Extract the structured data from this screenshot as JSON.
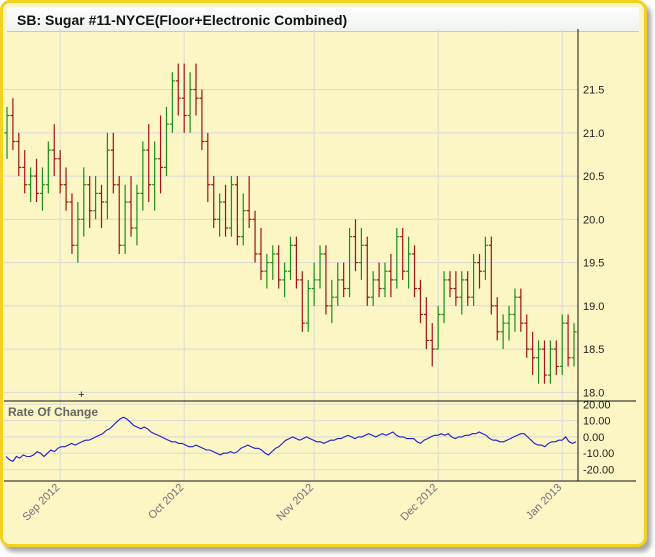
{
  "title": "SB: Sugar #11-NYCE(Floor+Electronic Combined)",
  "colors": {
    "up": "#1a8f1a",
    "down": "#a01414",
    "roc_line": "#1f1fd0",
    "grid": "#dadada",
    "frame": "#f2d21c",
    "background": "#fbf6c4"
  },
  "chart_data": [
    {
      "type": "ohlc",
      "title": "SB: Sugar #11-NYCE(Floor+Electronic Combined)",
      "y_ticks": [
        "18.0",
        "18.5",
        "19.0",
        "19.5",
        "20.0",
        "20.5",
        "21.0",
        "21.5"
      ],
      "ylim": [
        17.9,
        22.2
      ],
      "x_ticks": [
        "Sep 2012",
        "Oct 2012",
        "Nov 2012",
        "Dec 2012",
        "Jan 2013"
      ],
      "x_tick_bars": [
        9,
        30,
        52,
        73,
        94
      ],
      "grid": true,
      "bars": [
        [
          21.0,
          21.3,
          20.7,
          21.2
        ],
        [
          21.2,
          21.4,
          20.8,
          20.9
        ],
        [
          20.9,
          21.0,
          20.5,
          20.6
        ],
        [
          20.6,
          20.8,
          20.3,
          20.4
        ],
        [
          20.4,
          20.6,
          20.2,
          20.5
        ],
        [
          20.5,
          20.7,
          20.2,
          20.3
        ],
        [
          20.3,
          20.6,
          20.1,
          20.4
        ],
        [
          20.4,
          20.9,
          20.3,
          20.8
        ],
        [
          20.8,
          21.1,
          20.5,
          20.7
        ],
        [
          20.7,
          20.8,
          20.3,
          20.4
        ],
        [
          20.4,
          20.6,
          20.1,
          20.2
        ],
        [
          20.2,
          20.3,
          19.6,
          19.7
        ],
        [
          19.7,
          20.2,
          19.5,
          20.0
        ],
        [
          20.0,
          20.6,
          19.8,
          20.4
        ],
        [
          20.4,
          20.5,
          19.9,
          20.1
        ],
        [
          20.1,
          20.5,
          20.0,
          20.3
        ],
        [
          20.3,
          20.4,
          19.9,
          20.2
        ],
        [
          20.2,
          21.0,
          20.0,
          20.8
        ],
        [
          20.8,
          21.0,
          20.3,
          20.4
        ],
        [
          20.4,
          20.5,
          19.6,
          19.7
        ],
        [
          19.7,
          20.4,
          19.6,
          20.2
        ],
        [
          20.2,
          20.5,
          19.8,
          19.9
        ],
        [
          19.9,
          20.4,
          19.7,
          20.3
        ],
        [
          20.3,
          20.9,
          20.1,
          20.8
        ],
        [
          20.8,
          21.1,
          20.2,
          20.4
        ],
        [
          20.4,
          20.9,
          20.1,
          20.7
        ],
        [
          20.7,
          21.2,
          20.3,
          20.6
        ],
        [
          20.6,
          21.3,
          20.5,
          21.1
        ],
        [
          21.1,
          21.7,
          21.0,
          21.6
        ],
        [
          21.6,
          21.8,
          21.2,
          21.4
        ],
        [
          21.4,
          21.8,
          21.0,
          21.2
        ],
        [
          21.2,
          21.7,
          21.0,
          21.5
        ],
        [
          21.5,
          21.8,
          21.2,
          21.4
        ],
        [
          21.4,
          21.5,
          20.8,
          20.9
        ],
        [
          20.9,
          21.0,
          20.2,
          20.4
        ],
        [
          20.4,
          20.5,
          19.9,
          20.0
        ],
        [
          20.0,
          20.3,
          19.8,
          20.2
        ],
        [
          20.2,
          20.4,
          19.8,
          19.9
        ],
        [
          19.9,
          20.5,
          19.8,
          20.4
        ],
        [
          20.4,
          20.5,
          19.7,
          19.8
        ],
        [
          19.8,
          20.3,
          19.7,
          20.1
        ],
        [
          20.1,
          20.5,
          19.9,
          20.0
        ],
        [
          20.0,
          20.1,
          19.5,
          19.6
        ],
        [
          19.6,
          19.9,
          19.3,
          19.4
        ],
        [
          19.4,
          19.6,
          19.2,
          19.5
        ],
        [
          19.5,
          19.7,
          19.3,
          19.6
        ],
        [
          19.6,
          19.7,
          19.2,
          19.3
        ],
        [
          19.3,
          19.5,
          19.1,
          19.4
        ],
        [
          19.4,
          19.8,
          19.3,
          19.7
        ],
        [
          19.7,
          19.8,
          19.2,
          19.3
        ],
        [
          19.3,
          19.4,
          18.7,
          18.8
        ],
        [
          18.8,
          19.3,
          18.7,
          19.2
        ],
        [
          19.2,
          19.5,
          19.0,
          19.3
        ],
        [
          19.3,
          19.7,
          19.2,
          19.6
        ],
        [
          19.6,
          19.7,
          18.9,
          19.0
        ],
        [
          19.0,
          19.3,
          18.8,
          19.1
        ],
        [
          19.1,
          19.5,
          19.0,
          19.3
        ],
        [
          19.3,
          19.5,
          19.1,
          19.2
        ],
        [
          19.2,
          19.9,
          19.1,
          19.8
        ],
        [
          19.8,
          20.0,
          19.4,
          19.5
        ],
        [
          19.5,
          19.9,
          19.3,
          19.7
        ],
        [
          19.7,
          19.8,
          19.0,
          19.1
        ],
        [
          19.1,
          19.4,
          19.0,
          19.3
        ],
        [
          19.3,
          19.5,
          19.1,
          19.2
        ],
        [
          19.2,
          19.5,
          19.1,
          19.4
        ],
        [
          19.4,
          19.6,
          19.1,
          19.3
        ],
        [
          19.3,
          19.9,
          19.2,
          19.8
        ],
        [
          19.8,
          19.9,
          19.3,
          19.4
        ],
        [
          19.4,
          19.8,
          19.2,
          19.6
        ],
        [
          19.6,
          19.7,
          19.1,
          19.2
        ],
        [
          19.2,
          19.3,
          18.8,
          18.9
        ],
        [
          18.9,
          19.1,
          18.5,
          18.6
        ],
        [
          18.6,
          18.8,
          18.3,
          18.5
        ],
        [
          18.5,
          19.0,
          18.5,
          18.9
        ],
        [
          18.9,
          19.4,
          18.8,
          19.3
        ],
        [
          19.3,
          19.4,
          19.1,
          19.2
        ],
        [
          19.2,
          19.4,
          19.0,
          19.1
        ],
        [
          19.1,
          19.4,
          18.9,
          19.3
        ],
        [
          19.3,
          19.4,
          19.0,
          19.1
        ],
        [
          19.1,
          19.6,
          19.0,
          19.5
        ],
        [
          19.5,
          19.6,
          19.2,
          19.4
        ],
        [
          19.4,
          19.8,
          19.3,
          19.7
        ],
        [
          19.7,
          19.8,
          18.9,
          19.0
        ],
        [
          19.0,
          19.1,
          18.6,
          18.7
        ],
        [
          18.7,
          18.9,
          18.5,
          18.8
        ],
        [
          18.8,
          19.0,
          18.6,
          18.9
        ],
        [
          18.9,
          19.2,
          18.7,
          19.1
        ],
        [
          19.1,
          19.2,
          18.7,
          18.8
        ],
        [
          18.8,
          18.9,
          18.4,
          18.5
        ],
        [
          18.5,
          18.7,
          18.2,
          18.4
        ],
        [
          18.4,
          18.6,
          18.1,
          18.5
        ],
        [
          18.5,
          18.6,
          18.1,
          18.2
        ],
        [
          18.2,
          18.6,
          18.1,
          18.5
        ],
        [
          18.5,
          18.6,
          18.2,
          18.3
        ],
        [
          18.3,
          18.9,
          18.2,
          18.8
        ],
        [
          18.8,
          18.9,
          18.3,
          18.4
        ],
        [
          18.4,
          18.8,
          18.3,
          18.7
        ]
      ]
    },
    {
      "type": "line",
      "title": "Rate Of Change",
      "y_ticks": [
        "20.00",
        "10.00",
        "0.00",
        "-10.00",
        "-20.00"
      ],
      "ylim": [
        -27,
        22
      ],
      "series": [
        {
          "values": [
            -12,
            -14,
            -15,
            -12,
            -13,
            -11,
            -12,
            -12,
            -11,
            -9,
            -10,
            -12,
            -10,
            -8,
            -9,
            -7,
            -6,
            -6,
            -5,
            -4,
            -5,
            -4,
            -3,
            -2,
            -2,
            -1,
            0,
            1,
            2,
            4,
            5,
            7,
            9,
            11,
            12,
            11,
            9,
            7,
            6,
            5,
            6,
            5,
            3,
            2,
            1,
            0,
            -1,
            -2,
            -3,
            -3,
            -4,
            -4,
            -5,
            -6,
            -6,
            -5,
            -6,
            -7,
            -8,
            -8,
            -9,
            -10,
            -11,
            -10,
            -10,
            -9,
            -10,
            -9,
            -7,
            -6,
            -5,
            -6,
            -7,
            -7,
            -8,
            -10,
            -11,
            -9,
            -7,
            -6,
            -4,
            -2,
            -1,
            0,
            -1,
            -2,
            -1,
            0,
            -1,
            -2,
            -3,
            -3,
            -4,
            -3,
            -2,
            -2,
            -1,
            -1,
            0,
            1,
            0,
            -1,
            0,
            0,
            1,
            2,
            1,
            0,
            1,
            2,
            1,
            2,
            3,
            1,
            0,
            0,
            -1,
            -1,
            -1,
            -3,
            -4,
            -2,
            -1,
            0,
            1,
            1,
            2,
            1,
            2,
            0,
            -1,
            0,
            0,
            1,
            1,
            2,
            2,
            3,
            2,
            1,
            -1,
            -2,
            -2,
            -3,
            -3,
            -2,
            -1,
            0,
            1,
            2,
            2,
            0,
            -2,
            -4,
            -5,
            -5,
            -6,
            -4,
            -3,
            -3,
            -2,
            -2,
            0,
            -3,
            -4,
            -3
          ]
        }
      ]
    }
  ]
}
